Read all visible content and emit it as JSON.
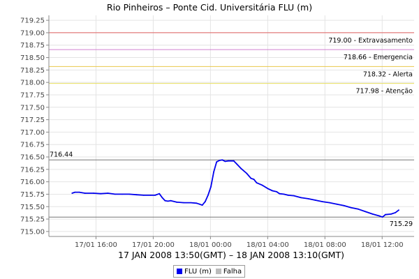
{
  "chart_data": {
    "type": "line",
    "title": "Rio Pinheiros – Ponte Cid. Universitária FLU (m)",
    "xlabel": "17 JAN 2008 13:50(GMT) – 18 JAN 2008 13:10(GMT)",
    "ylabel": "",
    "x_range_hours": [
      0,
      23.33
    ],
    "ylim": [
      714.9,
      719.35
    ],
    "yticks": [
      715.0,
      715.25,
      715.5,
      715.75,
      716.0,
      716.25,
      716.5,
      716.75,
      717.0,
      717.25,
      717.5,
      717.75,
      718.0,
      718.25,
      718.5,
      718.75,
      719.0,
      719.25
    ],
    "ytick_labels": [
      "715.00",
      "715.25",
      "715.50",
      "715.75",
      "716.00",
      "716.25",
      "716.50",
      "716.75",
      "717.00",
      "717.25",
      "717.50",
      "717.75",
      "718.00",
      "718.25",
      "718.50",
      "718.75",
      "719.00",
      "719.25"
    ],
    "xticks": [
      {
        "hours": 2.17,
        "label": "17/01 16:00"
      },
      {
        "hours": 6.17,
        "label": "17/01 20:00"
      },
      {
        "hours": 10.17,
        "label": "18/01 00:00"
      },
      {
        "hours": 14.17,
        "label": "18/01 04:00"
      },
      {
        "hours": 18.17,
        "label": "18/01 08:00"
      },
      {
        "hours": 22.17,
        "label": "18/01 12:00"
      }
    ],
    "grid": true,
    "legend_position": "bottom",
    "series": [
      {
        "name": "FLU (m)",
        "color": "#0000ee",
        "points": [
          [
            0.5,
            715.77
          ],
          [
            0.7,
            715.79
          ],
          [
            1.0,
            715.79
          ],
          [
            1.4,
            715.77
          ],
          [
            2.0,
            715.77
          ],
          [
            2.5,
            715.76
          ],
          [
            3.0,
            715.77
          ],
          [
            3.5,
            715.75
          ],
          [
            4.0,
            715.75
          ],
          [
            4.5,
            715.75
          ],
          [
            5.0,
            715.74
          ],
          [
            5.5,
            715.73
          ],
          [
            6.0,
            715.73
          ],
          [
            6.3,
            715.73
          ],
          [
            6.6,
            715.76
          ],
          [
            6.8,
            715.68
          ],
          [
            7.0,
            715.62
          ],
          [
            7.2,
            715.61
          ],
          [
            7.4,
            715.62
          ],
          [
            7.8,
            715.59
          ],
          [
            8.3,
            715.58
          ],
          [
            8.8,
            715.58
          ],
          [
            9.2,
            715.57
          ],
          [
            9.4,
            715.55
          ],
          [
            9.6,
            715.53
          ],
          [
            9.8,
            715.6
          ],
          [
            10.0,
            715.73
          ],
          [
            10.2,
            715.9
          ],
          [
            10.4,
            716.2
          ],
          [
            10.6,
            716.4
          ],
          [
            10.8,
            716.43
          ],
          [
            11.0,
            716.44
          ],
          [
            11.2,
            716.41
          ],
          [
            11.4,
            716.42
          ],
          [
            11.8,
            716.42
          ],
          [
            12.0,
            716.36
          ],
          [
            12.3,
            716.27
          ],
          [
            12.7,
            716.17
          ],
          [
            13.0,
            716.07
          ],
          [
            13.2,
            716.05
          ],
          [
            13.4,
            715.98
          ],
          [
            13.8,
            715.93
          ],
          [
            14.2,
            715.86
          ],
          [
            14.5,
            715.82
          ],
          [
            14.8,
            715.8
          ],
          [
            15.0,
            715.76
          ],
          [
            15.3,
            715.75
          ],
          [
            15.6,
            715.73
          ],
          [
            16.0,
            715.72
          ],
          [
            16.5,
            715.68
          ],
          [
            17.0,
            715.66
          ],
          [
            17.5,
            715.63
          ],
          [
            18.0,
            715.6
          ],
          [
            18.5,
            715.58
          ],
          [
            19.0,
            715.55
          ],
          [
            19.5,
            715.52
          ],
          [
            20.0,
            715.48
          ],
          [
            20.5,
            715.45
          ],
          [
            21.0,
            715.4
          ],
          [
            21.5,
            715.35
          ],
          [
            22.0,
            715.31
          ],
          [
            22.2,
            715.29
          ],
          [
            22.4,
            715.34
          ],
          [
            22.8,
            715.35
          ],
          [
            23.1,
            715.38
          ],
          [
            23.33,
            715.43
          ]
        ]
      },
      {
        "name": "Falha",
        "color": "#bbbbbb",
        "points": []
      }
    ],
    "thresholds": [
      {
        "value": 719.0,
        "label": "719.00 - Extravasamento",
        "color": "#e06060"
      },
      {
        "value": 718.66,
        "label": "718.66 - Emergencia",
        "color": "#d080d0"
      },
      {
        "value": 718.32,
        "label": "718.32 - Alerta",
        "color": "#e8c84a"
      },
      {
        "value": 717.98,
        "label": "717.98 - Atenção",
        "color": "#e8e060"
      }
    ],
    "reference_lines": [
      {
        "value": 716.44,
        "label": "716.44"
      },
      {
        "value": 715.29,
        "label": "715.29"
      }
    ]
  }
}
